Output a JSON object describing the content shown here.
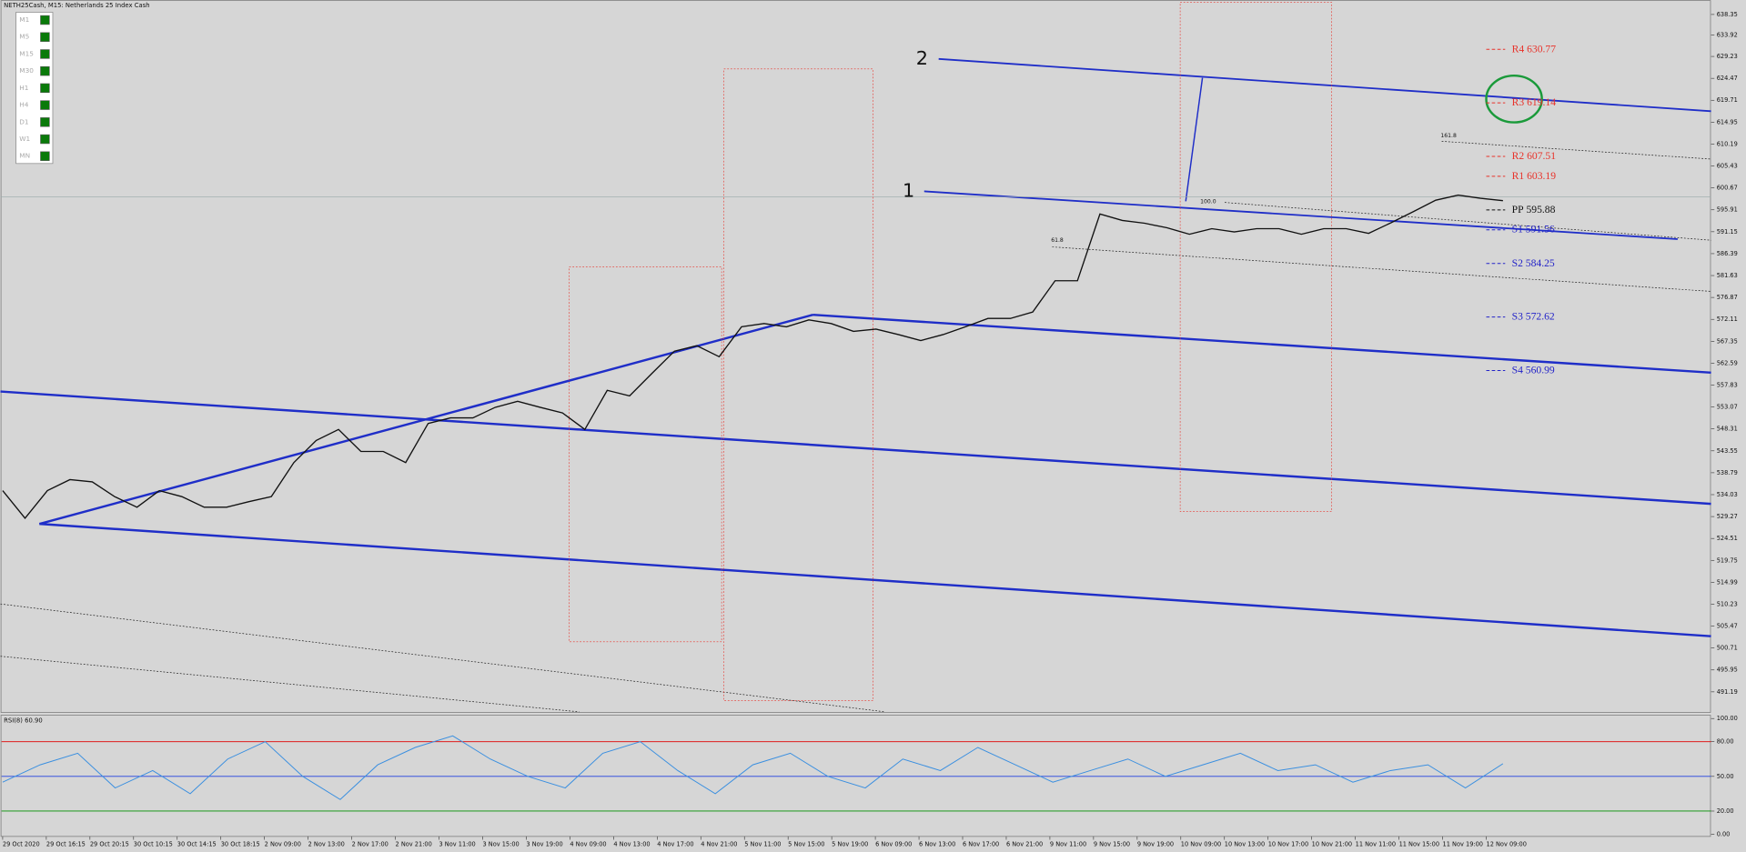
{
  "header": {
    "title": "NETH25Cash, M15: Netherlands 25 Index Cash"
  },
  "timeframes": [
    "M1",
    "M5",
    "M15",
    "M30",
    "H1",
    "H4",
    "D1",
    "W1",
    "MN"
  ],
  "price_axis": {
    "ticks": [
      638.35,
      633.92,
      629.23,
      624.47,
      619.71,
      614.95,
      610.19,
      605.43,
      600.67,
      595.91,
      591.15,
      586.39,
      581.63,
      576.87,
      572.11,
      567.35,
      562.59,
      557.83,
      553.07,
      548.31,
      543.55,
      538.79,
      534.03,
      529.27,
      524.51,
      519.75,
      514.99,
      510.23,
      505.47,
      500.71,
      495.95,
      491.19
    ]
  },
  "time_axis": {
    "labels": [
      "29 Oct 2020",
      "29 Oct 16:15",
      "29 Oct 20:15",
      "30 Oct 10:15",
      "30 Oct 14:15",
      "30 Oct 18:15",
      "2 Nov 09:00",
      "2 Nov 13:00",
      "2 Nov 17:00",
      "2 Nov 21:00",
      "3 Nov 11:00",
      "3 Nov 15:00",
      "3 Nov 19:00",
      "4 Nov 09:00",
      "4 Nov 13:00",
      "4 Nov 17:00",
      "4 Nov 21:00",
      "5 Nov 11:00",
      "5 Nov 15:00",
      "5 Nov 19:00",
      "6 Nov 09:00",
      "6 Nov 13:00",
      "6 Nov 17:00",
      "6 Nov 21:00",
      "9 Nov 11:00",
      "9 Nov 15:00",
      "9 Nov 19:00",
      "10 Nov 09:00",
      "10 Nov 13:00",
      "10 Nov 17:00",
      "10 Nov 21:00",
      "11 Nov 11:00",
      "11 Nov 15:00",
      "11 Nov 19:00",
      "12 Nov 09:00"
    ]
  },
  "pivots": [
    {
      "name": "R4",
      "value": 630.77,
      "color": "#e8322a"
    },
    {
      "name": "R3",
      "value": 619.14,
      "color": "#e8322a"
    },
    {
      "name": "R2",
      "value": 607.51,
      "color": "#e8322a"
    },
    {
      "name": "R1",
      "value": 603.19,
      "color": "#e8322a"
    },
    {
      "name": "PP",
      "value": 595.88,
      "color": "#111111"
    },
    {
      "name": "S1",
      "value": 591.56,
      "color": "#2323c8"
    },
    {
      "name": "S2",
      "value": 584.25,
      "color": "#2323c8"
    },
    {
      "name": "S3",
      "value": 572.62,
      "color": "#2323c8"
    },
    {
      "name": "S4",
      "value": 560.99,
      "color": "#2323c8"
    }
  ],
  "annotations": {
    "wave_1": "1",
    "wave_2": "2",
    "fib_161": "161.8",
    "fib_100": "100.0",
    "fib_61": "61.8"
  },
  "price_path": [
    534.9,
    528.9,
    534.9,
    537.3,
    536.8,
    533.6,
    531.3,
    534.9,
    533.6,
    531.3,
    531.3,
    532.5,
    533.6,
    541.0,
    545.8,
    548.2,
    543.4,
    543.4,
    541.0,
    549.5,
    550.7,
    550.7,
    553.0,
    554.3,
    553.0,
    551.8,
    548.2,
    556.7,
    555.5,
    560.4,
    565.2,
    566.4,
    564.0,
    570.5,
    571.2,
    570.5,
    572.0,
    571.2,
    569.5,
    570.0,
    568.8,
    567.5,
    568.8,
    570.5,
    572.3,
    572.3,
    573.7,
    580.5,
    580.5,
    595.0,
    593.6,
    593.0,
    592.0,
    590.6,
    591.8,
    591.1,
    591.8,
    591.8,
    590.6,
    591.8,
    591.8,
    590.8,
    593.1,
    595.5,
    598.0,
    599.1,
    598.4,
    597.9
  ],
  "rsi": {
    "title": "RSI(8) 60.90",
    "ticks": [
      {
        "value": 100,
        "label": "100.00"
      },
      {
        "value": 80,
        "label": "80.00"
      },
      {
        "value": 50,
        "label": "50.00"
      },
      {
        "value": 20,
        "label": "20.00"
      },
      {
        "value": 0,
        "label": "0.00"
      }
    ],
    "levels": [
      {
        "value": 80,
        "color": "#e00000"
      },
      {
        "value": 50,
        "color": "#2040e0"
      },
      {
        "value": 20,
        "color": "#009000"
      }
    ],
    "values": [
      45,
      60,
      70,
      40,
      55,
      35,
      65,
      80,
      50,
      30,
      60,
      75,
      85,
      65,
      50,
      40,
      70,
      80,
      55,
      35,
      60,
      70,
      50,
      40,
      65,
      55,
      75,
      60,
      45,
      55,
      65,
      50,
      60,
      70,
      55,
      60,
      45,
      55,
      60,
      40,
      61
    ]
  }
}
